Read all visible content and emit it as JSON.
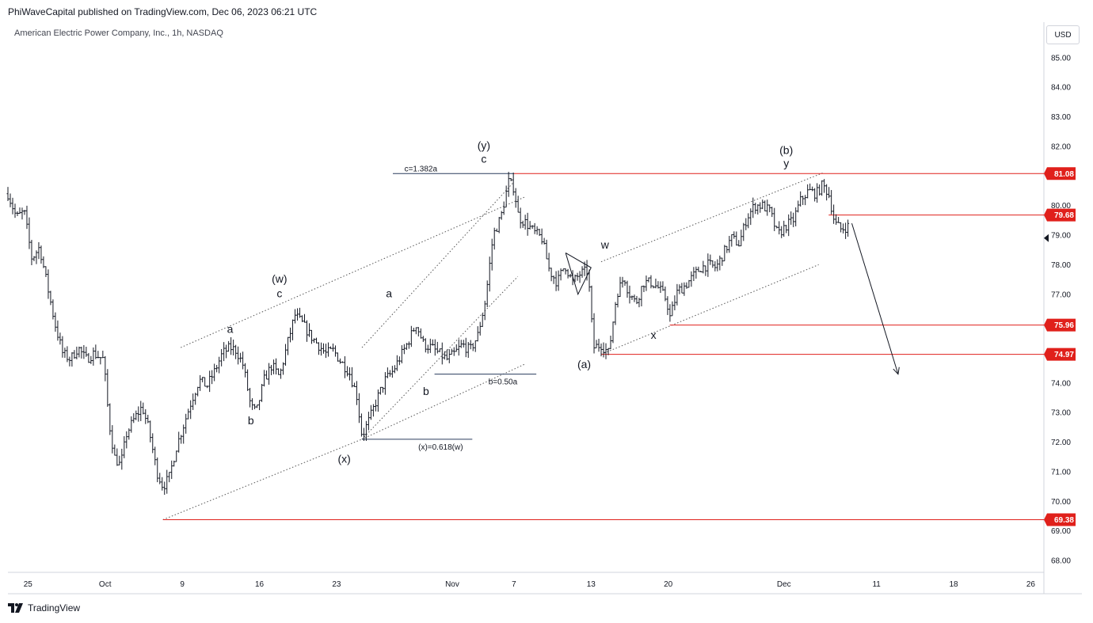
{
  "header": {
    "published": "PhiWaveCapital published on TradingView.com, Dec 06, 2023 06:21 UTC"
  },
  "currency": "USD",
  "logo": {
    "text": "TradingView",
    "icon": "tradingview-logo-icon"
  },
  "colors": {
    "candle": "#131722",
    "level": "#e0201b",
    "fib": "#2a3c5e",
    "trend": "#555555",
    "grid": "#d1d4dc"
  },
  "chart_data": {
    "type": "ohlc",
    "title": "American Electric Power Company, Inc., 1h, NASDAQ",
    "ylim": [
      67.6,
      86.2
    ],
    "y_ticks": [
      "85.00",
      "84.00",
      "83.00",
      "82.00",
      "81.00",
      "80.00",
      "79.00",
      "78.00",
      "77.00",
      "76.00",
      "75.00",
      "74.00",
      "73.00",
      "72.00",
      "71.00",
      "70.00",
      "69.00",
      "68.00"
    ],
    "x_ticks": [
      "25",
      "Oct",
      "9",
      "16",
      "23",
      "Nov",
      "7",
      "13",
      "20",
      "Dec",
      "11",
      "18",
      "26"
    ],
    "x_tick_positions": [
      0,
      10,
      20,
      30,
      40,
      55,
      63,
      73,
      83,
      98,
      110,
      120,
      130
    ],
    "x_range": [
      -2.6,
      131.7
    ],
    "price_path": [
      [
        -2.6,
        80.4
      ],
      [
        -1.5,
        79.6
      ],
      [
        -0.5,
        79.8
      ],
      [
        0.5,
        78.2
      ],
      [
        1.5,
        78.6
      ],
      [
        2.5,
        77.3
      ],
      [
        3.5,
        76.0
      ],
      [
        4.5,
        75.0
      ],
      [
        5.5,
        74.8
      ],
      [
        6.5,
        75.2
      ],
      [
        7.5,
        74.8
      ],
      [
        8.5,
        75.0
      ],
      [
        9.8,
        74.8
      ],
      [
        10.5,
        72.7
      ],
      [
        11.2,
        71.5
      ],
      [
        12.0,
        71.2
      ],
      [
        12.8,
        72.3
      ],
      [
        13.8,
        72.8
      ],
      [
        14.8,
        73.2
      ],
      [
        15.7,
        72.4
      ],
      [
        16.7,
        71.0
      ],
      [
        17.5,
        70.5
      ],
      [
        18.3,
        70.8
      ],
      [
        19.2,
        71.8
      ],
      [
        20.2,
        72.6
      ],
      [
        21.2,
        73.4
      ],
      [
        22.2,
        74.1
      ],
      [
        23.2,
        73.9
      ],
      [
        24.2,
        74.4
      ],
      [
        25.2,
        75.0
      ],
      [
        26.2,
        75.2
      ],
      [
        27.0,
        75.1
      ],
      [
        27.9,
        74.6
      ],
      [
        28.9,
        73.2
      ],
      [
        29.6,
        73.0
      ],
      [
        30.6,
        74.1
      ],
      [
        31.6,
        74.6
      ],
      [
        32.6,
        74.2
      ],
      [
        33.6,
        75.3
      ],
      [
        34.6,
        76.3
      ],
      [
        35.6,
        76.0
      ],
      [
        36.6,
        75.6
      ],
      [
        37.6,
        75.3
      ],
      [
        38.6,
        75.0
      ],
      [
        39.6,
        75.1
      ],
      [
        40.6,
        74.7
      ],
      [
        41.6,
        74.4
      ],
      [
        42.6,
        73.6
      ],
      [
        43.3,
        72.2
      ],
      [
        44.3,
        72.8
      ],
      [
        45.3,
        73.5
      ],
      [
        46.3,
        74.1
      ],
      [
        47.3,
        74.4
      ],
      [
        48.3,
        74.9
      ],
      [
        49.3,
        75.4
      ],
      [
        50.3,
        76.0
      ],
      [
        51.3,
        75.3
      ],
      [
        52.3,
        75.2
      ],
      [
        53.3,
        75.0
      ],
      [
        54.3,
        74.8
      ],
      [
        55.3,
        75.0
      ],
      [
        56.3,
        75.3
      ],
      [
        57.3,
        75.1
      ],
      [
        58.3,
        75.6
      ],
      [
        59.3,
        76.8
      ],
      [
        60.3,
        79.0
      ],
      [
        61.3,
        79.6
      ],
      [
        62.3,
        80.8
      ],
      [
        63.0,
        80.6
      ],
      [
        63.6,
        79.6
      ],
      [
        64.6,
        79.4
      ],
      [
        65.6,
        79.1
      ],
      [
        66.6,
        78.9
      ],
      [
        67.6,
        77.8
      ],
      [
        68.6,
        77.4
      ],
      [
        69.6,
        78.0
      ],
      [
        70.6,
        77.4
      ],
      [
        71.6,
        77.7
      ],
      [
        72.6,
        77.8
      ],
      [
        73.3,
        75.2
      ],
      [
        74.3,
        75.3
      ],
      [
        75.3,
        75.0
      ],
      [
        76.3,
        77.0
      ],
      [
        77.3,
        77.6
      ],
      [
        77.8,
        77.1
      ],
      [
        78.8,
        76.7
      ],
      [
        79.8,
        77.4
      ],
      [
        80.8,
        77.4
      ],
      [
        81.8,
        77.2
      ],
      [
        82.8,
        76.8
      ],
      [
        83.2,
        76.2
      ],
      [
        84.2,
        77.1
      ],
      [
        85.2,
        77.3
      ],
      [
        86.2,
        77.6
      ],
      [
        87.2,
        77.9
      ],
      [
        88.2,
        78.0
      ],
      [
        89.2,
        77.9
      ],
      [
        90.2,
        78.4
      ],
      [
        91.2,
        78.9
      ],
      [
        92.2,
        78.7
      ],
      [
        93.2,
        79.6
      ],
      [
        94.2,
        80.0
      ],
      [
        95.2,
        80.0
      ],
      [
        96.2,
        79.8
      ],
      [
        97.2,
        79.0
      ],
      [
        98.2,
        79.3
      ],
      [
        99.2,
        79.5
      ],
      [
        100.2,
        80.2
      ],
      [
        101.2,
        80.5
      ],
      [
        102.2,
        80.4
      ],
      [
        103.0,
        80.7
      ],
      [
        103.8,
        80.4
      ],
      [
        104.6,
        79.4
      ],
      [
        105.4,
        79.2
      ],
      [
        106.3,
        79.3
      ]
    ],
    "levels": [
      {
        "name": "level-81-08",
        "value": 81.08,
        "label": "81.08",
        "x_start": 63.0
      },
      {
        "name": "level-79-68",
        "value": 79.68,
        "label": "79.68",
        "x_start": 103.8
      },
      {
        "name": "level-75-96",
        "value": 75.96,
        "label": "75.96",
        "x_start": 83.2
      },
      {
        "name": "level-74-97",
        "value": 74.97,
        "label": "74.97",
        "x_start": 74.3
      },
      {
        "name": "level-69-38",
        "value": 69.38,
        "label": "69.38",
        "x_start": 17.5
      }
    ],
    "current_price": 78.9,
    "fib_lines": [
      {
        "name": "fib-c-1382a",
        "x1": 47.3,
        "x2": 63.0,
        "y": 81.08,
        "label": "c=1.382a",
        "lx": 48.8,
        "ly": 81.15
      },
      {
        "name": "fib-b-050a",
        "x1": 52.7,
        "x2": 65.9,
        "y": 74.3,
        "label": "b=0.50a",
        "lx": 59.7,
        "ly": 73.95
      },
      {
        "name": "fib-x-0618w",
        "x1": 43.3,
        "x2": 57.6,
        "y": 72.1,
        "label": "(x)=0.618(w)",
        "lx": 50.6,
        "ly": 71.75
      }
    ],
    "trendlines": [
      [
        17.5,
        69.38,
        43.3,
        72.1
      ],
      [
        43.3,
        72.1,
        64.5,
        74.65
      ],
      [
        43.3,
        72.1,
        63.5,
        77.6
      ],
      [
        19.8,
        75.2,
        64.5,
        80.3
      ],
      [
        43.3,
        75.2,
        63.0,
        80.8
      ],
      [
        74.3,
        74.97,
        102.5,
        78.0
      ],
      [
        74.3,
        78.1,
        103.0,
        81.1
      ]
    ],
    "triangle": [
      [
        69.7,
        78.4
      ],
      [
        73.0,
        77.9
      ],
      [
        71.3,
        77.0
      ],
      [
        69.7,
        78.4
      ]
    ],
    "projection_arrow": {
      "from": [
        106.8,
        79.4
      ],
      "to": [
        112.8,
        74.3
      ]
    },
    "wave_labels": [
      {
        "name": "wave-label-w",
        "text": "(w)",
        "x": 32.6,
        "y": 77.4
      },
      {
        "name": "wave-label-c-1",
        "text": "c",
        "x": 32.6,
        "y": 76.9
      },
      {
        "name": "wave-label-a-1",
        "text": "a",
        "x": 26.2,
        "y": 75.7
      },
      {
        "name": "wave-label-b-1",
        "text": "b",
        "x": 28.9,
        "y": 72.6
      },
      {
        "name": "wave-label-x",
        "text": "(x)",
        "x": 41.0,
        "y": 71.3
      },
      {
        "name": "wave-label-a-2",
        "text": "a",
        "x": 46.8,
        "y": 76.9
      },
      {
        "name": "wave-label-b-2",
        "text": "b",
        "x": 51.6,
        "y": 73.6
      },
      {
        "name": "wave-label-y",
        "text": "(y)",
        "x": 59.1,
        "y": 81.9
      },
      {
        "name": "wave-label-c-2",
        "text": "c",
        "x": 59.1,
        "y": 81.45
      },
      {
        "name": "wave-label-w-small",
        "text": "w",
        "x": 74.8,
        "y": 78.55
      },
      {
        "name": "wave-label-x-small",
        "text": "x",
        "x": 81.1,
        "y": 75.5
      },
      {
        "name": "wave-label-a-paren",
        "text": "(a)",
        "x": 72.1,
        "y": 74.5
      },
      {
        "name": "wave-label-b-paren",
        "text": "(b)",
        "x": 98.3,
        "y": 81.75
      },
      {
        "name": "wave-label-y-small",
        "text": "y",
        "x": 98.3,
        "y": 81.3
      }
    ]
  }
}
